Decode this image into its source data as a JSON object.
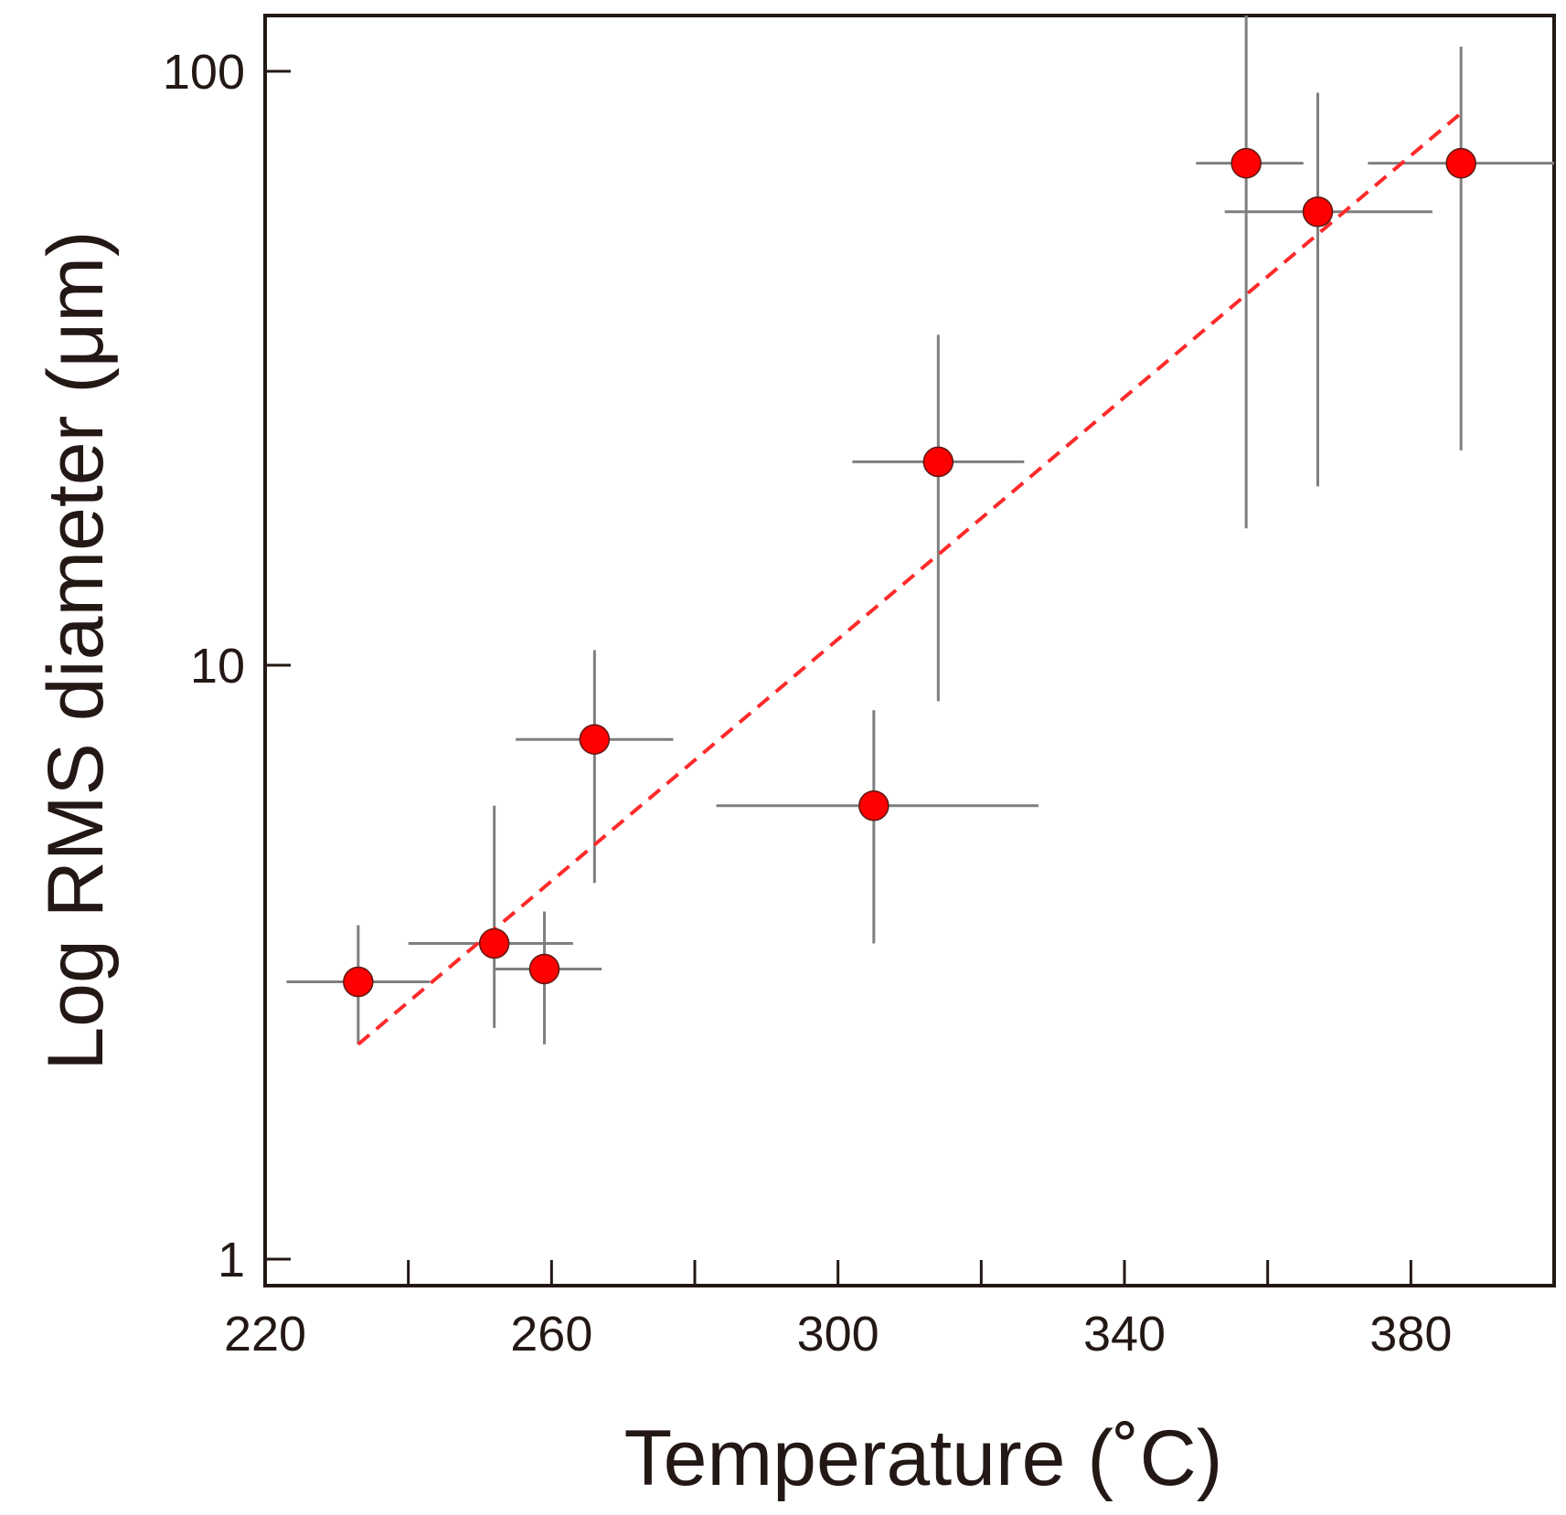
{
  "chart_data": {
    "type": "scatter",
    "title": "",
    "xlabel": "Temperature (˚C)",
    "ylabel": "Log RMS diameter (μm)",
    "xlim": [
      220,
      400
    ],
    "ylim": [
      1,
      130
    ],
    "yscale": "log",
    "grid": false,
    "legend": "none",
    "x_ticks": [
      220,
      240,
      260,
      280,
      300,
      320,
      340,
      360,
      380
    ],
    "x_tick_labels": [
      "220",
      "260",
      "300",
      "340",
      "380"
    ],
    "x_tick_label_values": [
      220,
      260,
      300,
      340,
      380
    ],
    "y_ticks": [
      1,
      10,
      100
    ],
    "y_tick_labels": [
      "1",
      "10",
      "100"
    ],
    "colors": {
      "marker_fill": "#ff0000",
      "marker_edge": "#5a1a14",
      "error_bar": "#7f7f7f",
      "fit_line": "#ff2a2a",
      "axis": "#231815",
      "text": "#231815"
    },
    "series": [
      {
        "name": "RMS diameter",
        "points": [
          {
            "x": 233,
            "y": 2.93,
            "xerr": [
              223,
              243
            ],
            "yerr": [
              2.3,
              3.65
            ]
          },
          {
            "x": 252,
            "y": 3.4,
            "xerr": [
              240,
              263
            ],
            "yerr": [
              2.45,
              5.8
            ]
          },
          {
            "x": 259,
            "y": 3.08,
            "xerr": [
              252,
              267
            ],
            "yerr": [
              2.3,
              3.85
            ]
          },
          {
            "x": 266,
            "y": 7.5,
            "xerr": [
              255,
              277
            ],
            "yerr": [
              4.3,
              10.6
            ]
          },
          {
            "x": 305,
            "y": 5.8,
            "xerr": [
              283,
              328
            ],
            "yerr": [
              3.4,
              8.4
            ]
          },
          {
            "x": 314,
            "y": 22,
            "xerr": [
              302,
              326
            ],
            "yerr": [
              8.7,
              36
            ]
          },
          {
            "x": 357,
            "y": 70,
            "xerr": [
              350,
              365
            ],
            "yerr": [
              17,
              125
            ]
          },
          {
            "x": 367,
            "y": 58,
            "xerr": [
              354,
              383
            ],
            "yerr": [
              20,
              92
            ]
          },
          {
            "x": 387,
            "y": 70,
            "xerr": [
              374,
              400
            ],
            "yerr": [
              23,
              110
            ]
          }
        ]
      }
    ],
    "fit_line": {
      "style": "dashed",
      "x": [
        233,
        387
      ],
      "y": [
        2.3,
        85
      ]
    }
  }
}
